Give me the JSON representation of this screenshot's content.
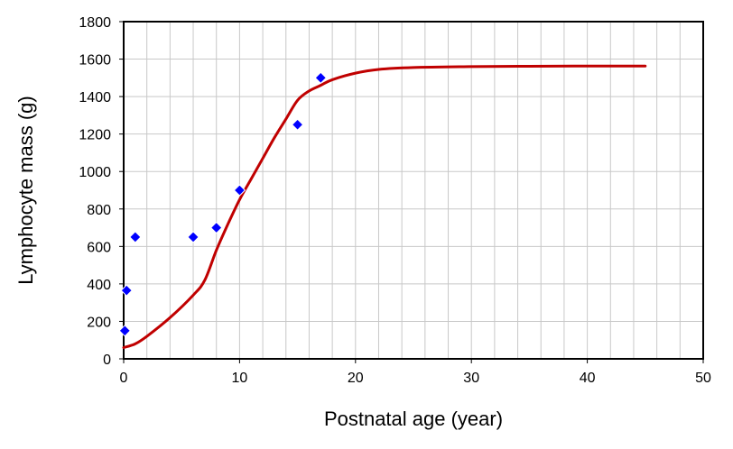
{
  "chart_data": {
    "type": "line",
    "title": "",
    "xlabel": "Postnatal age (year)",
    "ylabel": "Lymphocyte mass (g)",
    "xlim": [
      0,
      50
    ],
    "ylim": [
      0,
      1800
    ],
    "x_ticks": [
      0,
      10,
      20,
      30,
      40,
      50
    ],
    "y_ticks": [
      0,
      200,
      400,
      600,
      800,
      1000,
      1200,
      1400,
      1600,
      1800
    ],
    "grid": true,
    "legend": "none",
    "series": [
      {
        "kind": "line",
        "color": "#C00000",
        "x": [
          0,
          1,
          2,
          4,
          6,
          7,
          8,
          9,
          10,
          11,
          12,
          13,
          14,
          15,
          16,
          17,
          18,
          20,
          22,
          25,
          30,
          35,
          40,
          45
        ],
        "y": [
          60,
          80,
          120,
          220,
          340,
          420,
          580,
          720,
          850,
          960,
          1070,
          1180,
          1280,
          1380,
          1430,
          1460,
          1490,
          1525,
          1545,
          1555,
          1560,
          1562,
          1563,
          1563
        ]
      },
      {
        "kind": "scatter",
        "color": "#0000FF",
        "marker": "diamond",
        "x": [
          0.1,
          0.25,
          1,
          6,
          8,
          10,
          15,
          17
        ],
        "y": [
          150,
          365,
          650,
          650,
          700,
          900,
          1250,
          1500
        ]
      }
    ]
  }
}
